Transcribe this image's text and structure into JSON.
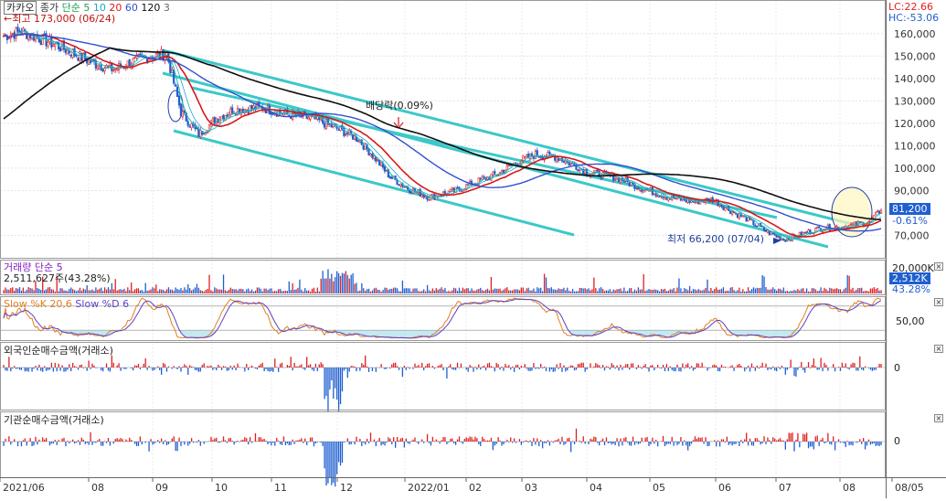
{
  "chart_data": [
    {
      "type": "candlestick",
      "title": "카카오",
      "series": [
        {
          "name": "종가"
        },
        {
          "name": "단순"
        },
        {
          "name": "5"
        },
        {
          "name": "10"
        },
        {
          "name": "20"
        },
        {
          "name": "60"
        },
        {
          "name": "120"
        },
        {
          "name": "3"
        }
      ],
      "y_ticks": [
        "160,000",
        "150,000",
        "140,000",
        "130,000",
        "120,000",
        "110,000",
        "100,000",
        "90,000",
        "70,000"
      ],
      "ylim": [
        60000,
        175000
      ],
      "x_ticks": [
        "2021/06",
        "08",
        "09",
        "10",
        "11",
        "12",
        "2022/01",
        "02",
        "03",
        "04",
        "05",
        "06",
        "07",
        "08",
        "08/05"
      ],
      "annotations": {
        "high": "최고 173,000 (06/24)",
        "low": "최저 66,200 (07/04)",
        "dividend": "배당락(0.09%)",
        "lc": "LC:22.66",
        "hc": "HC:-53.06",
        "last_price": "81,200",
        "change_pct": "-0.61%"
      },
      "close_trend": [
        {
          "x": 0,
          "y": 159000
        },
        {
          "x": 10,
          "y": 161000
        },
        {
          "x": 20,
          "y": 158000
        },
        {
          "x": 35,
          "y": 153000
        },
        {
          "x": 50,
          "y": 147000
        },
        {
          "x": 62,
          "y": 144000
        },
        {
          "x": 78,
          "y": 149000
        },
        {
          "x": 92,
          "y": 151000
        },
        {
          "x": 100,
          "y": 125000
        },
        {
          "x": 110,
          "y": 115000
        },
        {
          "x": 120,
          "y": 122000
        },
        {
          "x": 130,
          "y": 126000
        },
        {
          "x": 145,
          "y": 127000
        },
        {
          "x": 160,
          "y": 124000
        },
        {
          "x": 175,
          "y": 122000
        },
        {
          "x": 190,
          "y": 117000
        },
        {
          "x": 200,
          "y": 113000
        },
        {
          "x": 210,
          "y": 104000
        },
        {
          "x": 218,
          "y": 96000
        },
        {
          "x": 228,
          "y": 91000
        },
        {
          "x": 240,
          "y": 87000
        },
        {
          "x": 255,
          "y": 90000
        },
        {
          "x": 270,
          "y": 95000
        },
        {
          "x": 280,
          "y": 98000
        },
        {
          "x": 290,
          "y": 103000
        },
        {
          "x": 300,
          "y": 106000
        },
        {
          "x": 312,
          "y": 105000
        },
        {
          "x": 320,
          "y": 102000
        },
        {
          "x": 330,
          "y": 98000
        },
        {
          "x": 345,
          "y": 96000
        },
        {
          "x": 360,
          "y": 91000
        },
        {
          "x": 375,
          "y": 87000
        },
        {
          "x": 390,
          "y": 85000
        },
        {
          "x": 400,
          "y": 86000
        },
        {
          "x": 410,
          "y": 81000
        },
        {
          "x": 420,
          "y": 77000
        },
        {
          "x": 430,
          "y": 72000
        },
        {
          "x": 440,
          "y": 68000
        },
        {
          "x": 448,
          "y": 70000
        },
        {
          "x": 460,
          "y": 73000
        },
        {
          "x": 475,
          "y": 74000
        },
        {
          "x": 488,
          "y": 76000
        },
        {
          "x": 495,
          "y": 81200
        }
      ]
    },
    {
      "type": "bar",
      "title": "거래량",
      "series": [
        {
          "name": "단순"
        },
        {
          "name": "5"
        }
      ],
      "readout": "2,511,627주(43.28%)",
      "y_ticks": [
        "20,000K"
      ],
      "last_value": "2,512K",
      "last_pct": "43.28%"
    },
    {
      "type": "line",
      "title": "Slow %K 20,6",
      "series": [
        {
          "name": "Slow %K 20,6"
        },
        {
          "name": "Slow %D 6"
        }
      ],
      "y_ticks": [
        "50,00"
      ],
      "ylim": [
        0,
        100
      ]
    },
    {
      "type": "bar",
      "title": "외국인순매수금액(거래소)",
      "y_ticks": [
        "0"
      ]
    },
    {
      "type": "bar",
      "title": "기관순매수금액(거래소)",
      "y_ticks": [
        "0"
      ]
    }
  ],
  "icons": {
    "pane_close": "close-icon",
    "scroll": "scroll-icon"
  },
  "colors": {
    "up": "#e02020",
    "down": "#1f5fd0",
    "ma5": "#28b8b0",
    "ma20": "#d81818",
    "ma60": "#3050d0",
    "ma120": "#101010",
    "channel": "#3cc8c8",
    "stoch_k": "#e08020",
    "stoch_d": "#6040c0"
  }
}
